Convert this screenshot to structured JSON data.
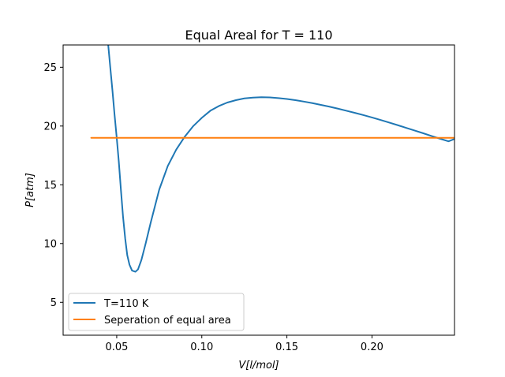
{
  "chart_data": {
    "type": "line",
    "title": "Equal Areal for T = 110",
    "xlabel": "V[l/mol]",
    "ylabel": "P[atm]",
    "xlim": [
      0.0185,
      0.2485
    ],
    "ylim": [
      2.2,
      26.9
    ],
    "xticks": [
      0.05,
      0.1,
      0.15,
      0.2
    ],
    "xtick_labels": [
      "0.05",
      "0.10",
      "0.15",
      "0.20"
    ],
    "yticks": [
      5,
      10,
      15,
      20,
      25
    ],
    "ytick_labels": [
      "5",
      "10",
      "15",
      "20",
      "25"
    ],
    "grid": false,
    "legend_position": "lower-left",
    "series": [
      {
        "name": "T=110 K",
        "color": "#1f77b4",
        "x": [
          0.045,
          0.0462,
          0.0475,
          0.0487,
          0.05,
          0.0512,
          0.0525,
          0.0537,
          0.055,
          0.0562,
          0.0575,
          0.059,
          0.061,
          0.0625,
          0.0645,
          0.067,
          0.07,
          0.075,
          0.08,
          0.085,
          0.09,
          0.095,
          0.1,
          0.105,
          0.11,
          0.115,
          0.12,
          0.125,
          0.13,
          0.135,
          0.14,
          0.145,
          0.15,
          0.155,
          0.16,
          0.165,
          0.17,
          0.175,
          0.18,
          0.185,
          0.19,
          0.195,
          0.2,
          0.205,
          0.21,
          0.215,
          0.22,
          0.225,
          0.23,
          0.235,
          0.24,
          0.245,
          0.2485
        ],
        "y": [
          26.9,
          25.0,
          23.0,
          21.0,
          19.0,
          17.0,
          14.5,
          12.3,
          10.4,
          9.0,
          8.2,
          7.7,
          7.6,
          7.8,
          8.6,
          10.0,
          11.8,
          14.6,
          16.6,
          18.0,
          19.1,
          20.0,
          20.7,
          21.3,
          21.7,
          22.0,
          22.2,
          22.35,
          22.42,
          22.45,
          22.44,
          22.38,
          22.3,
          22.2,
          22.08,
          21.95,
          21.8,
          21.65,
          21.48,
          21.3,
          21.12,
          20.93,
          20.73,
          20.52,
          20.3,
          20.08,
          19.85,
          19.62,
          19.39,
          19.15,
          18.92,
          18.7,
          18.9
        ]
      },
      {
        "name": "Seperation of equal area",
        "color": "#ff7f0e",
        "x": [
          0.035,
          0.2485
        ],
        "y": [
          19.0,
          19.0
        ]
      }
    ]
  }
}
